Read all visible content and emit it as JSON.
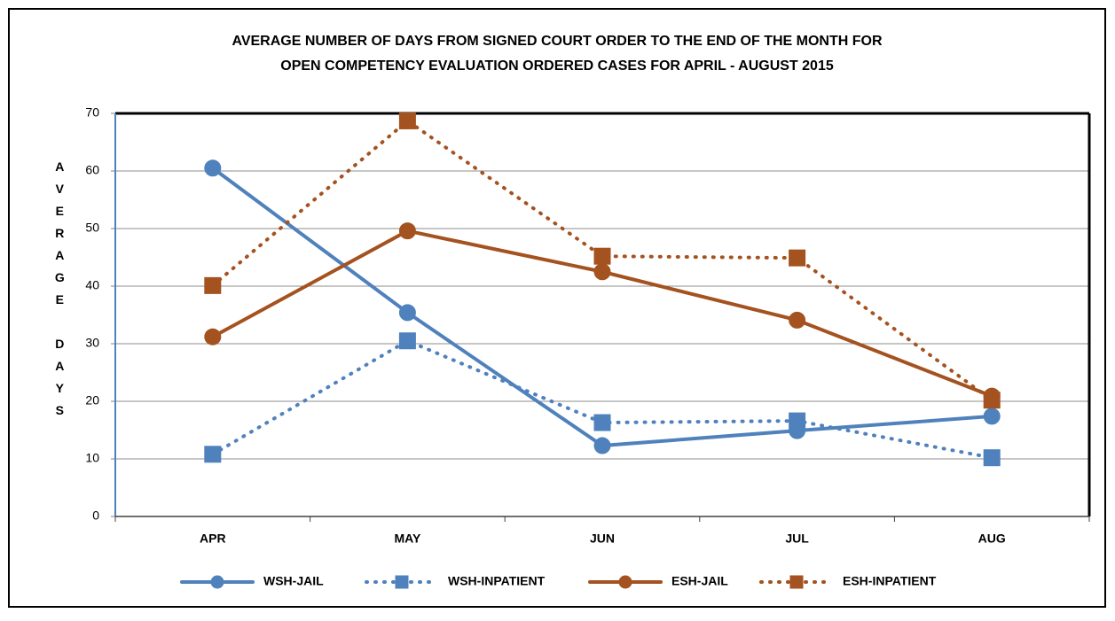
{
  "chart_data": {
    "type": "line",
    "title": [
      "AVERAGE NUMBER OF DAYS FROM SIGNED COURT ORDER TO THE END OF THE MONTH FOR",
      "OPEN COMPETENCY EVALUATION ORDERED CASES FOR APRIL - AUGUST 2015"
    ],
    "y_label": "AVERAGE DAYS",
    "categories": [
      "APR",
      "MAY",
      "JUN",
      "JUL",
      "AUG"
    ],
    "series": [
      {
        "name": "WSH-JAIL",
        "color": "#4f81bd",
        "line_style": "solid",
        "marker": "circle",
        "values": [
          60.5,
          35.4,
          12.3,
          14.9,
          17.4
        ]
      },
      {
        "name": "WSH-INPATIENT",
        "color": "#4f81bd",
        "line_style": "dotted",
        "marker": "square",
        "values": [
          10.8,
          30.5,
          16.3,
          16.6,
          10.2
        ]
      },
      {
        "name": "ESH-JAIL",
        "color": "#a4521f",
        "line_style": "solid",
        "marker": "circle",
        "values": [
          31.2,
          49.6,
          42.5,
          34.1,
          20.9
        ]
      },
      {
        "name": "ESH-INPATIENT",
        "color": "#a4521f",
        "line_style": "dotted",
        "marker": "square",
        "values": [
          40.1,
          68.7,
          45.2,
          44.9,
          20.2
        ]
      }
    ],
    "ylim": [
      0,
      70
    ],
    "yticks": [
      0,
      10,
      20,
      30,
      40,
      50,
      60,
      70
    ],
    "grid": true,
    "legend": "bottom"
  }
}
